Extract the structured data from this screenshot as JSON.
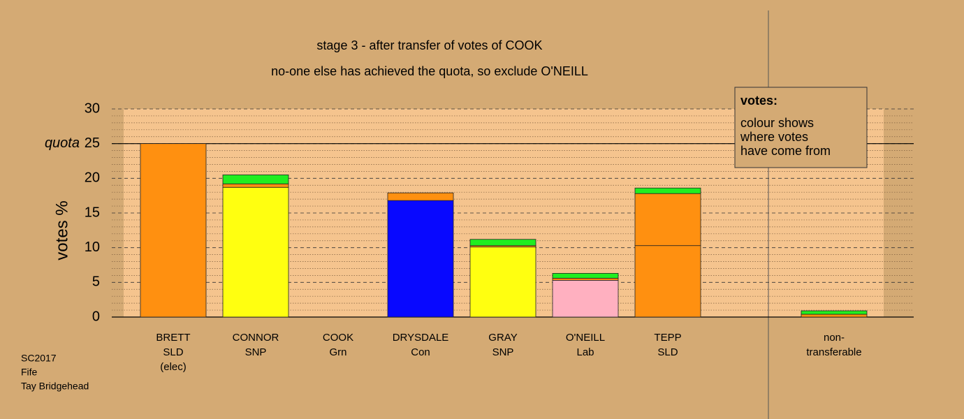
{
  "chart_data": {
    "type": "bar",
    "stacked": true,
    "title": "stage 3 - after transfer of votes of COOK",
    "subtitle": "no-one else has achieved the quota, so exclude O'NEILL",
    "y_label": "votes %",
    "categories": [
      [
        "BRETT",
        "SLD",
        "(elec)"
      ],
      [
        "CONNOR",
        "SNP"
      ],
      [
        "COOK",
        "Grn"
      ],
      [
        "DRYSDALE",
        "Con"
      ],
      [
        "GRAY",
        "SNP"
      ],
      [
        "O'NEILL",
        "Lab"
      ],
      [
        "TEPP",
        "SLD"
      ],
      [
        "non-",
        "transferable"
      ]
    ],
    "series": [
      {
        "color": "#ff9010",
        "values": [
          25,
          null,
          null,
          null,
          null,
          null,
          10.3,
          null
        ]
      },
      {
        "color": "#ffff10",
        "values": [
          null,
          18.7,
          null,
          null,
          10.1,
          null,
          null,
          null
        ]
      },
      {
        "color": "#0808ff",
        "values": [
          null,
          null,
          null,
          16.8,
          null,
          null,
          null,
          null
        ]
      },
      {
        "color": "#ffb0c0",
        "values": [
          null,
          null,
          null,
          null,
          null,
          5.3,
          null,
          null
        ]
      },
      {
        "color": "#ff9010",
        "values": [
          null,
          0.5,
          null,
          1.1,
          0.2,
          0.3,
          7.5,
          0.4
        ]
      },
      {
        "color": "#20ee20",
        "values": [
          null,
          1.3,
          null,
          null,
          0.9,
          0.7,
          0.8,
          0.5
        ]
      }
    ],
    "ylim": [
      0,
      30
    ],
    "yticks": [
      0,
      5,
      10,
      15,
      20,
      25,
      30
    ],
    "yminorticks": [
      1,
      2,
      3,
      4,
      6,
      7,
      8,
      9,
      11,
      12,
      13,
      14,
      16,
      17,
      18,
      19,
      21,
      22,
      23,
      24,
      26,
      27,
      28,
      29
    ],
    "quota": {
      "label": "quota",
      "value": 25
    },
    "note_box": {
      "title": "votes:",
      "lines": [
        "colour shows",
        "where votes",
        "have come from"
      ]
    },
    "footer": [
      "SC2017",
      "Fife",
      "Tay Bridgehead"
    ]
  }
}
